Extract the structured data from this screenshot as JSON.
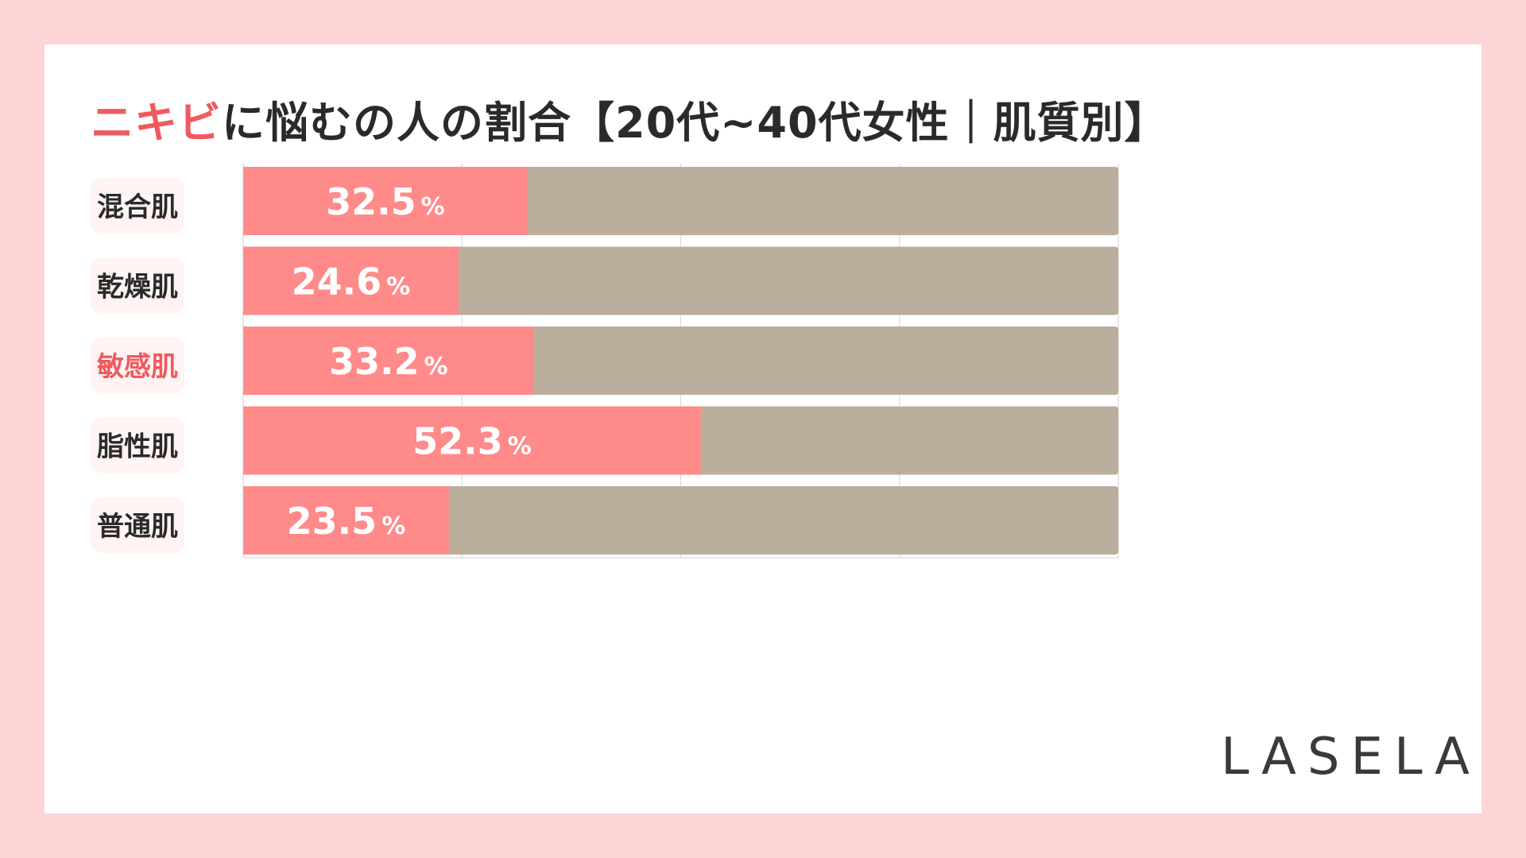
{
  "title": {
    "highlight": "ニキビ",
    "rest": "に悩むの人の割合【20代~40代女性｜肌質別】"
  },
  "logo": "LASELA",
  "colors": {
    "page_bg": "#fdd5d7",
    "card_bg": "#ffffff",
    "bar": "#ff8a8a",
    "bar_remainder": "#bcae9c",
    "label_pill": "#fff3f3",
    "label_text": "#2a2a2a",
    "label_highlight": "#f05a5e",
    "value_text": "#ffffff"
  },
  "chart_data": {
    "type": "bar",
    "orientation": "horizontal",
    "stacked": true,
    "xlim": [
      0,
      100
    ],
    "grid": true,
    "categories": [
      "混合肌",
      "乾燥肌",
      "敏感肌",
      "脂性肌",
      "普通肌"
    ],
    "highlight_category": "敏感肌",
    "values": [
      32.5,
      24.6,
      33.2,
      52.3,
      23.5
    ],
    "value_labels": [
      "32.5",
      "24.6",
      "33.2",
      "52.3",
      "23.5"
    ],
    "value_suffix": "%"
  }
}
